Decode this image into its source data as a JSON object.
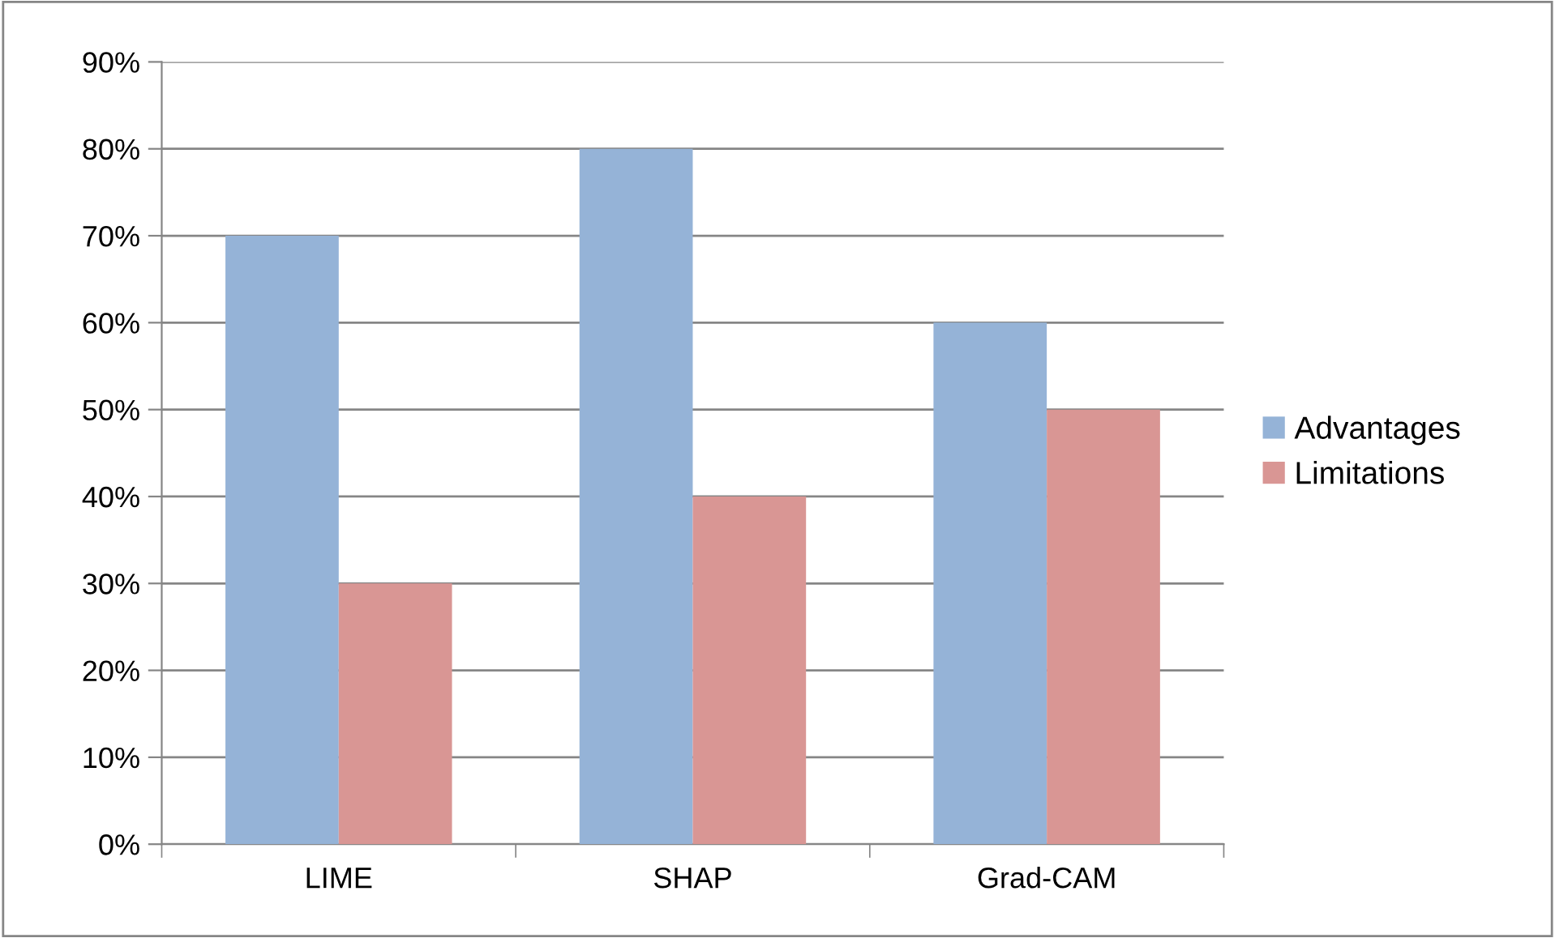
{
  "chart_data": {
    "type": "bar",
    "categories": [
      "LIME",
      "SHAP",
      "Grad-CAM"
    ],
    "series": [
      {
        "name": "Advantages",
        "color": "#95b3d7",
        "values": [
          70,
          80,
          60
        ]
      },
      {
        "name": "Limitations",
        "color": "#d99694",
        "values": [
          30,
          40,
          50
        ]
      }
    ],
    "ylim": [
      0,
      90
    ],
    "yticks": [
      {
        "value": 0,
        "label": "0%"
      },
      {
        "value": 10,
        "label": "10%"
      },
      {
        "value": 20,
        "label": "20%"
      },
      {
        "value": 30,
        "label": "30%"
      },
      {
        "value": 40,
        "label": "40%"
      },
      {
        "value": 50,
        "label": "50%"
      },
      {
        "value": 60,
        "label": "60%"
      },
      {
        "value": 70,
        "label": "70%"
      },
      {
        "value": 80,
        "label": "80%"
      },
      {
        "value": 90,
        "label": "90%"
      }
    ],
    "grid": "y",
    "legend": "right"
  }
}
